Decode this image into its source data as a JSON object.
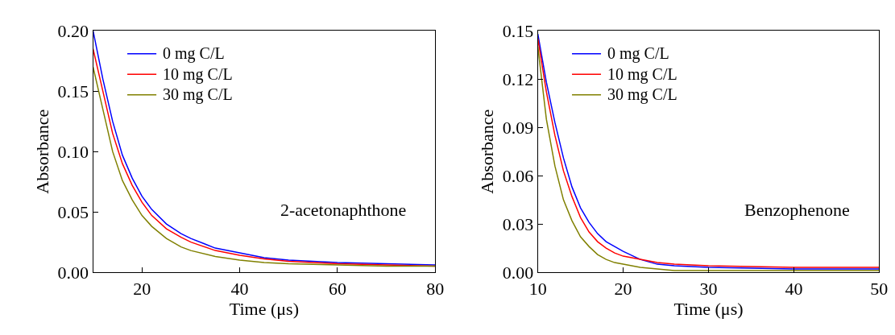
{
  "chart_data": [
    {
      "type": "line",
      "xlabel": "Time (μs)",
      "ylabel": "Absorbance",
      "annotations": [
        "2-acetonaphthone"
      ],
      "xlim": [
        10,
        80
      ],
      "xticks": [
        20,
        40,
        60,
        80
      ],
      "ylim": [
        0,
        0.2
      ],
      "yticks": [
        {
          "value": 0,
          "label": "0.00"
        },
        0.05,
        {
          "value": 0.1,
          "label": "0.10"
        },
        0.15,
        {
          "value": 0.2,
          "label": "0.20"
        }
      ],
      "legend": "top left",
      "marker": "none",
      "line_style": "solid",
      "series": [
        {
          "name": "0 mg C/L",
          "color": "#0000ff",
          "x": [
            10,
            12,
            14,
            16,
            18,
            20,
            22,
            25,
            28,
            30,
            35,
            40,
            45,
            50,
            60,
            70,
            80
          ],
          "values": [
            0.2,
            0.16,
            0.125,
            0.097,
            0.078,
            0.063,
            0.052,
            0.04,
            0.032,
            0.028,
            0.02,
            0.016,
            0.012,
            0.01,
            0.008,
            0.007,
            0.006
          ]
        },
        {
          "name": "10 mg C/L",
          "color": "#ff0000",
          "x": [
            10,
            12,
            14,
            16,
            18,
            20,
            22,
            25,
            28,
            30,
            35,
            40,
            45,
            50,
            60,
            70,
            80
          ],
          "values": [
            0.185,
            0.15,
            0.115,
            0.09,
            0.072,
            0.058,
            0.047,
            0.036,
            0.029,
            0.025,
            0.018,
            0.014,
            0.011,
            0.009,
            0.007,
            0.006,
            0.005
          ]
        },
        {
          "name": "30 mg C/L",
          "color": "#808000",
          "x": [
            10,
            12,
            14,
            16,
            18,
            20,
            22,
            25,
            28,
            30,
            35,
            40,
            45,
            50,
            60,
            70,
            80
          ],
          "values": [
            0.17,
            0.135,
            0.1,
            0.076,
            0.06,
            0.047,
            0.038,
            0.028,
            0.021,
            0.018,
            0.013,
            0.01,
            0.008,
            0.007,
            0.006,
            0.005,
            0.005
          ]
        }
      ]
    },
    {
      "type": "line",
      "xlabel": "Time (μs)",
      "ylabel": "Absorbance",
      "annotations": [
        "Benzophenone"
      ],
      "xlim": [
        10,
        50
      ],
      "xticks": [
        10,
        20,
        30,
        40,
        50
      ],
      "ylim": [
        0,
        0.15
      ],
      "yticks": [
        {
          "value": 0,
          "label": "0.00"
        },
        0.03,
        0.06,
        0.09,
        0.12,
        0.15
      ],
      "legend": "top left",
      "marker": "none",
      "line_style": "solid",
      "series": [
        {
          "name": "0 mg C/L",
          "color": "#0000ff",
          "x": [
            10,
            11,
            12,
            13,
            14,
            15,
            16,
            17,
            18,
            19,
            20,
            22,
            24,
            26,
            30,
            40,
            50
          ],
          "values": [
            0.148,
            0.118,
            0.093,
            0.071,
            0.053,
            0.04,
            0.031,
            0.024,
            0.019,
            0.016,
            0.013,
            0.008,
            0.005,
            0.004,
            0.003,
            0.002,
            0.002
          ]
        },
        {
          "name": "10 mg C/L",
          "color": "#ff0000",
          "x": [
            10,
            11,
            12,
            13,
            14,
            15,
            16,
            17,
            18,
            19,
            20,
            22,
            24,
            26,
            30,
            40,
            50
          ],
          "values": [
            0.145,
            0.112,
            0.085,
            0.063,
            0.047,
            0.034,
            0.025,
            0.019,
            0.015,
            0.012,
            0.01,
            0.008,
            0.006,
            0.005,
            0.004,
            0.003,
            0.003
          ]
        },
        {
          "name": "30 mg C/L",
          "color": "#808000",
          "x": [
            10,
            11,
            12,
            13,
            14,
            15,
            16,
            17,
            18,
            19,
            20,
            22,
            24,
            26,
            30,
            40,
            50
          ],
          "values": [
            0.14,
            0.095,
            0.066,
            0.045,
            0.032,
            0.022,
            0.016,
            0.011,
            0.008,
            0.006,
            0.005,
            0.003,
            0.002,
            0.001,
            0.001,
            0.001,
            0.001
          ]
        }
      ]
    }
  ]
}
